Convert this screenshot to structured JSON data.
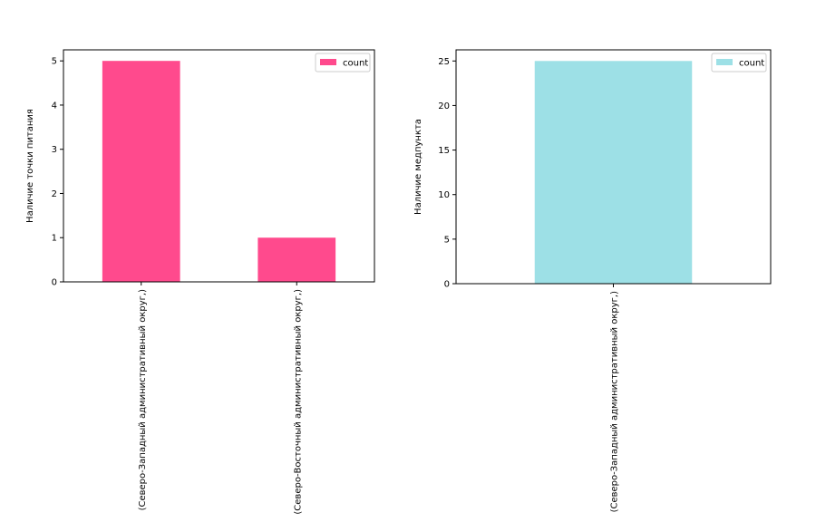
{
  "chart_data": [
    {
      "type": "bar",
      "categories": [
        "(Северо-Западный административный округ,)",
        "(Северо-Восточный административный округ,)"
      ],
      "series": [
        {
          "name": "count",
          "values": [
            5,
            1
          ],
          "color": "#ff4a8d"
        }
      ],
      "ylabel": "Наличие точки питания",
      "ylim": [
        0,
        5.25
      ],
      "yticks": [
        0,
        1,
        2,
        3,
        4,
        5
      ],
      "grid": false,
      "legend": "top-right"
    },
    {
      "type": "bar",
      "categories": [
        "(Северо-Западный административный округ,)"
      ],
      "series": [
        {
          "name": "count",
          "values": [
            25
          ],
          "color": "#9de0e6"
        }
      ],
      "ylabel": "Наличие медпункта",
      "ylim": [
        0,
        26.25
      ],
      "yticks": [
        0,
        5,
        10,
        15,
        20,
        25
      ],
      "grid": false,
      "legend": "top-right"
    }
  ]
}
